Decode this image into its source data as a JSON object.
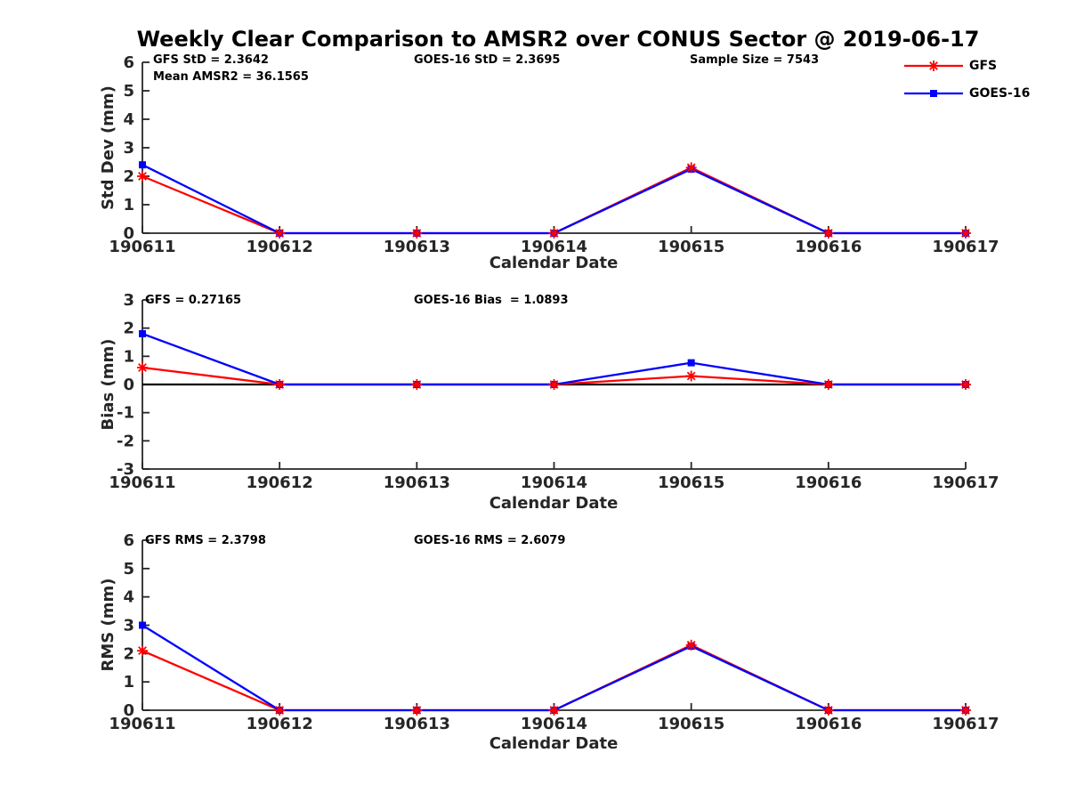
{
  "title": "Weekly Clear Comparison to AMSR2 over CONUS Sector @ 2019-06-17",
  "axis_color": "#262626",
  "legend": {
    "entries": [
      {
        "label": "GFS",
        "color": "#ff0000",
        "marker": "asterisk"
      },
      {
        "label": "GOES-16",
        "color": "#0000ff",
        "marker": "square"
      }
    ]
  },
  "chart_data": [
    {
      "id": "stddev",
      "type": "line",
      "ylabel": "Std Dev (mm)",
      "xlabel": "Calendar Date",
      "categories": [
        "190611",
        "190612",
        "190613",
        "190614",
        "190615",
        "190616",
        "190617"
      ],
      "yticks": [
        0,
        1,
        2,
        3,
        4,
        5,
        6
      ],
      "ylim": [
        0,
        6
      ],
      "grid": false,
      "legend_position": "top-right",
      "zero_line": false,
      "series": [
        {
          "name": "GFS",
          "color": "#ff0000",
          "marker": "asterisk",
          "values": [
            2.0,
            0,
            0,
            0,
            2.3,
            0,
            0
          ]
        },
        {
          "name": "GOES-16",
          "color": "#0000ff",
          "marker": "square",
          "values": [
            2.4,
            0,
            0,
            0,
            2.25,
            0,
            0
          ]
        }
      ],
      "annotations": [
        "GFS StD = 2.3642",
        "Mean AMSR2 = 36.1565",
        "GOES-16 StD = 2.3695",
        "Sample Size = 7543"
      ]
    },
    {
      "id": "bias",
      "type": "line",
      "ylabel": "Bias (mm)",
      "xlabel": "Calendar Date",
      "categories": [
        "190611",
        "190612",
        "190613",
        "190614",
        "190615",
        "190616",
        "190617"
      ],
      "yticks": [
        -3,
        -2,
        -1,
        0,
        1,
        2,
        3
      ],
      "ylim": [
        -3,
        3
      ],
      "grid": false,
      "zero_line": true,
      "series": [
        {
          "name": "GFS",
          "color": "#ff0000",
          "marker": "asterisk",
          "values": [
            0.6,
            0,
            0,
            0,
            0.3,
            0,
            0
          ]
        },
        {
          "name": "GOES-16",
          "color": "#0000ff",
          "marker": "square",
          "values": [
            1.8,
            0,
            0,
            0,
            0.77,
            0,
            0
          ]
        }
      ],
      "annotations": [
        "GFS = 0.27165",
        "GOES-16 Bias  = 1.0893"
      ]
    },
    {
      "id": "rms",
      "type": "line",
      "ylabel": "RMS (mm)",
      "xlabel": "Calendar Date",
      "categories": [
        "190611",
        "190612",
        "190613",
        "190614",
        "190615",
        "190616",
        "190617"
      ],
      "yticks": [
        0,
        1,
        2,
        3,
        4,
        5,
        6
      ],
      "ylim": [
        0,
        6
      ],
      "grid": false,
      "zero_line": false,
      "series": [
        {
          "name": "GFS",
          "color": "#ff0000",
          "marker": "asterisk",
          "values": [
            2.1,
            0,
            0,
            0,
            2.3,
            0,
            0
          ]
        },
        {
          "name": "GOES-16",
          "color": "#0000ff",
          "marker": "square",
          "values": [
            3.0,
            0,
            0,
            0,
            2.26,
            0,
            0
          ]
        }
      ],
      "annotations": [
        "GFS RMS = 2.3798",
        "GOES-16 RMS = 2.6079"
      ]
    }
  ]
}
